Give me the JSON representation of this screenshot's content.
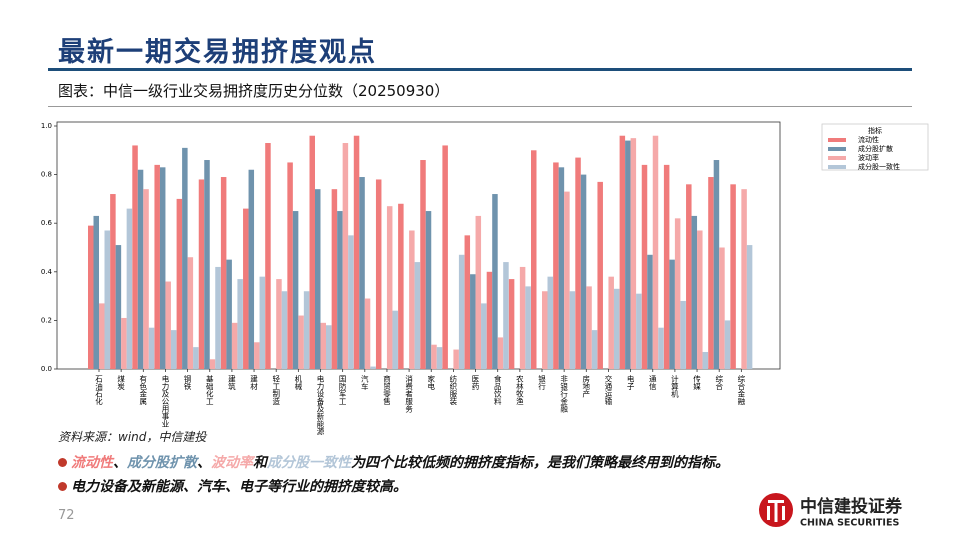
{
  "header": {
    "title": "最新一期交易拥挤度观点",
    "subtitle": "图表：中信一级行业交易拥挤度历史分位数（20250930）"
  },
  "chart_data": {
    "type": "bar",
    "legend_title": "指标",
    "legend": "upper right outside",
    "grid": false,
    "categories": [
      "石油石化",
      "煤炭",
      "有色金属",
      "电力及公用事业",
      "钢铁",
      "基础化工",
      "建筑",
      "建材",
      "轻工制造",
      "机械",
      "电力设备及新能源",
      "国防军工",
      "汽车",
      "商贸零售",
      "消费者服务",
      "家电",
      "纺织服装",
      "医药",
      "食品饮料",
      "农林牧渔",
      "银行",
      "非银行金融",
      "房地产",
      "交通运输",
      "电子",
      "通信",
      "计算机",
      "传媒",
      "综合",
      "综合金融"
    ],
    "series": [
      {
        "name": "流动性",
        "color": "#f07b7b",
        "values": [
          0.59,
          0.72,
          0.92,
          0.84,
          0.7,
          0.78,
          0.79,
          0.66,
          0.93,
          0.85,
          0.96,
          0.74,
          0.96,
          0.78,
          0.68,
          0.86,
          0.92,
          0.55,
          0.4,
          0.37,
          0.9,
          0.85,
          0.87,
          0.77,
          0.96,
          0.84,
          0.84,
          0.76,
          0.79,
          0.76
        ]
      },
      {
        "name": "成分股扩散",
        "color": "#6f93ad",
        "values": [
          0.63,
          0.51,
          0.82,
          0.83,
          0.91,
          0.86,
          0.45,
          0.82,
          null,
          0.65,
          0.74,
          0.65,
          0.79,
          null,
          null,
          0.65,
          null,
          0.39,
          0.72,
          null,
          null,
          0.83,
          0.8,
          null,
          0.94,
          0.47,
          0.45,
          0.63,
          0.86,
          null
        ]
      },
      {
        "name": "波动率",
        "color": "#f5a9a9",
        "values": [
          0.27,
          0.21,
          0.74,
          0.36,
          0.46,
          0.04,
          0.19,
          0.11,
          0.37,
          0.22,
          0.19,
          0.93,
          0.29,
          0.67,
          0.57,
          0.1,
          0.08,
          0.63,
          0.13,
          0.42,
          0.32,
          0.73,
          0.34,
          0.38,
          0.95,
          0.96,
          0.62,
          0.57,
          0.5,
          0.74
        ]
      },
      {
        "name": "成分股一致性",
        "color": "#b3c6d8",
        "values": [
          0.57,
          0.66,
          0.17,
          0.16,
          0.09,
          0.42,
          0.37,
          0.38,
          0.32,
          0.32,
          0.18,
          0.55,
          0.01,
          0.24,
          0.44,
          0.09,
          0.47,
          0.27,
          0.44,
          0.34,
          0.38,
          0.32,
          0.16,
          0.33,
          0.31,
          0.17,
          0.28,
          0.07,
          0.2,
          0.51
        ]
      }
    ],
    "ylim": [
      0,
      1.0
    ],
    "yticks": [
      {
        "value": 0,
        "label": "0.0"
      },
      {
        "value": 0.2,
        "label": "0.2"
      },
      {
        "value": 0.4,
        "label": "0.4"
      },
      {
        "value": 0.6,
        "label": "0.6"
      },
      {
        "value": 0.8,
        "label": "0.8"
      },
      {
        "value": 1.0,
        "label": "1.0"
      }
    ]
  },
  "source": "资料来源：wind，中信建投",
  "bullets": [
    [
      "流动性",
      "、",
      "成分股扩散",
      "、",
      "波动率",
      "和",
      "成分股一致性",
      "为四个比较低频的拥挤度指标，是我们策略最终用到的指标。"
    ],
    [
      "电力设备及新能源、汽车、电子等行业的拥挤度较高。"
    ]
  ],
  "page_number": "72",
  "logo": {
    "name": "中信建投证券",
    "english": "CHINA SECURITIES"
  }
}
